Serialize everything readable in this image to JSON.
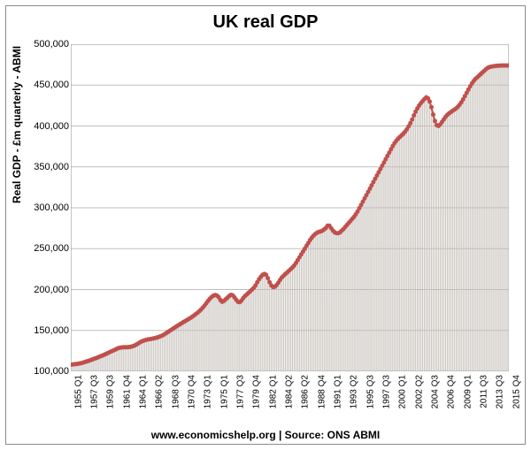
{
  "title": "UK real GDP",
  "ylabel": "Real GDP - £m quarterly  - ABMI",
  "caption": "www.economicshelp.org | Source: ONS ABMI",
  "chart": {
    "type": "area-line",
    "background_color": "#ffffff",
    "grid_color": "#bfbfbf",
    "axis_color": "#8b8b8b",
    "line_color": "#c0504d",
    "marker_color": "#c0504d",
    "marker_size": 2.5,
    "line_width": 2,
    "fill_color": "#d9d4cf",
    "vertical_bar_stroke": "#9a9690",
    "ylim": [
      100000,
      500000
    ],
    "ytick_step": 50000,
    "yticks": [
      100000,
      150000,
      200000,
      250000,
      300000,
      350000,
      400000,
      450000,
      500000
    ],
    "xlabels": [
      "1955 Q1",
      "1957 Q3",
      "1959 Q3",
      "1961 Q4",
      "1964 Q1",
      "1966 Q2",
      "1968 Q3",
      "1970 Q4",
      "1973 Q1",
      "1975 Q1",
      "1977 Q3",
      "1979 Q4",
      "1982 Q1",
      "1984 Q2",
      "1986 Q2",
      "1988 Q4",
      "1991 Q1",
      "1993 Q2",
      "1995 Q3",
      "1997 Q3",
      "2000 Q1",
      "2002 Q2",
      "2004 Q3",
      "2006 Q4",
      "2009 Q1",
      "2011 Q3",
      "2013 Q3",
      "2015 Q4"
    ],
    "x_count": 250,
    "series": [
      108000,
      108300,
      108600,
      108900,
      109200,
      109600,
      110100,
      110700,
      111400,
      112100,
      112800,
      113500,
      114300,
      115100,
      115900,
      116700,
      117600,
      118500,
      119400,
      120300,
      121300,
      122300,
      123300,
      124300,
      125300,
      126300,
      127300,
      128300,
      128800,
      129200,
      129400,
      129400,
      129400,
      129600,
      130000,
      130600,
      131400,
      132400,
      133600,
      135000,
      136200,
      137200,
      138000,
      138600,
      139000,
      139400,
      139800,
      140200,
      140700,
      141300,
      142000,
      142800,
      143800,
      145000,
      146400,
      147800,
      149200,
      150600,
      152000,
      153400,
      154800,
      156200,
      157500,
      158800,
      160100,
      161400,
      162700,
      164000,
      165300,
      166700,
      168200,
      169800,
      171500,
      173400,
      175500,
      177800,
      180400,
      183200,
      186000,
      188600,
      190800,
      192400,
      193200,
      192800,
      190800,
      187200,
      185000,
      186000,
      188000,
      190000,
      192000,
      193500,
      193000,
      190500,
      187500,
      185000,
      184500,
      186500,
      189500,
      192000,
      194000,
      196000,
      198000,
      200000,
      202000,
      205000,
      209000,
      212500,
      215500,
      218000,
      219000,
      218000,
      214000,
      209000,
      205000,
      203000,
      203500,
      205500,
      208500,
      212000,
      215000,
      217000,
      219000,
      221000,
      223000,
      225000,
      227000,
      229500,
      232500,
      236000,
      239500,
      243000,
      246500,
      250000,
      253500,
      257000,
      260500,
      263500,
      266000,
      268000,
      269500,
      270500,
      271000,
      272000,
      273500,
      275500,
      278000,
      278000,
      275000,
      272000,
      270000,
      269000,
      269000,
      270000,
      272000,
      274000,
      276500,
      279000,
      281500,
      284000,
      286500,
      289000,
      292000,
      295500,
      299500,
      303500,
      307500,
      311500,
      315500,
      319500,
      323500,
      327500,
      331500,
      335500,
      339500,
      343500,
      347500,
      351500,
      355500,
      359500,
      363500,
      367500,
      371500,
      375500,
      379000,
      382000,
      384500,
      386500,
      388500,
      390500,
      393000,
      396000,
      399500,
      403500,
      408000,
      413000,
      417500,
      421500,
      425000,
      428000,
      430500,
      433000,
      435000,
      434000,
      430000,
      423000,
      414000,
      406000,
      401000,
      400000,
      402000,
      405000,
      408000,
      411000,
      413500,
      415500,
      417000,
      418500,
      420000,
      421500,
      423500,
      426000,
      429000,
      432500,
      436500,
      440500,
      444500,
      448500,
      452000,
      455000,
      457500,
      459500,
      461500,
      463500,
      465500,
      467500,
      469500,
      471000,
      472000,
      472500,
      473000,
      473300,
      473500,
      473700,
      473800,
      473900,
      473950,
      473980,
      473990,
      474000
    ]
  }
}
